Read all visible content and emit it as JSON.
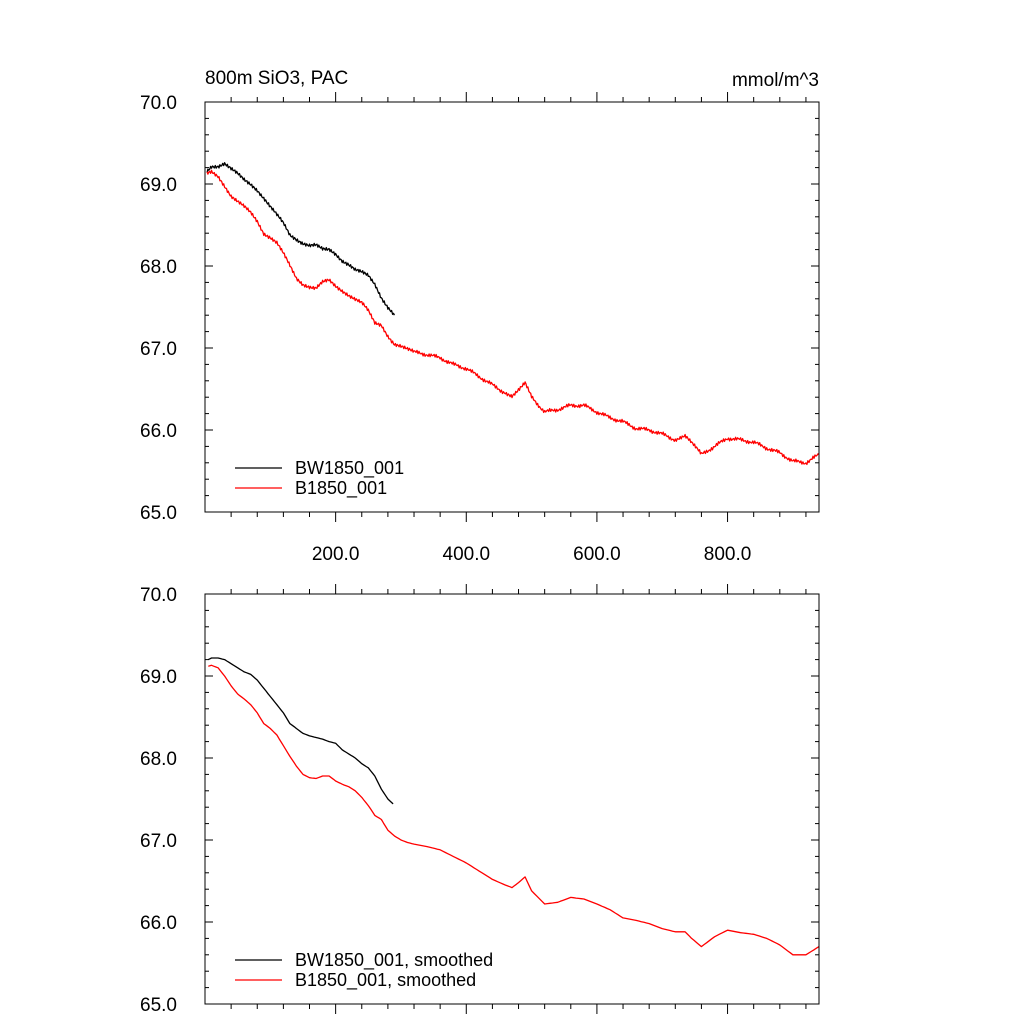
{
  "chart_data": [
    {
      "type": "line",
      "title": "800m SiO3, PAC",
      "units": "mmol/m^3",
      "xlabel": "",
      "ylabel": "",
      "xlim": [
        0,
        940
      ],
      "ylim": [
        65.0,
        70.0
      ],
      "x_ticks": [
        200,
        400,
        600,
        800
      ],
      "x_tick_labels": [
        "200.0",
        "400.0",
        "600.0",
        "800.0"
      ],
      "y_ticks": [
        65,
        66,
        67,
        68,
        69,
        70
      ],
      "y_tick_labels": [
        "65.0",
        "66.0",
        "67.0",
        "68.0",
        "69.0",
        "70.0"
      ],
      "grid": false,
      "legend": "bottom-left",
      "series": [
        {
          "name": "BW1850_001",
          "color": "#000000",
          "x": [
            3,
            10,
            20,
            30,
            40,
            50,
            60,
            70,
            80,
            90,
            100,
            110,
            120,
            130,
            140,
            150,
            160,
            170,
            180,
            190,
            200,
            210,
            220,
            230,
            240,
            250,
            260,
            270,
            280,
            290
          ],
          "y": [
            69.15,
            69.22,
            69.22,
            69.25,
            69.18,
            69.12,
            69.05,
            69.0,
            68.93,
            68.83,
            68.72,
            68.62,
            68.52,
            68.38,
            68.33,
            68.28,
            68.25,
            68.25,
            68.2,
            68.2,
            68.15,
            68.07,
            68.02,
            67.95,
            67.92,
            67.88,
            67.78,
            67.62,
            67.5,
            67.4
          ]
        },
        {
          "name": "B1850_001",
          "color": "#ff0000",
          "x": [
            3,
            10,
            20,
            30,
            40,
            50,
            60,
            70,
            80,
            90,
            100,
            110,
            120,
            130,
            140,
            150,
            160,
            170,
            180,
            190,
            200,
            210,
            220,
            230,
            240,
            250,
            260,
            270,
            280,
            290,
            300,
            310,
            320,
            340,
            360,
            380,
            400,
            420,
            440,
            460,
            470,
            480,
            490,
            500,
            520,
            540,
            560,
            580,
            600,
            620,
            640,
            660,
            680,
            700,
            720,
            735,
            745,
            760,
            780,
            800,
            820,
            840,
            860,
            880,
            900,
            920,
            940
          ],
          "y": [
            69.12,
            69.15,
            69.1,
            68.98,
            68.85,
            68.78,
            68.72,
            68.65,
            68.55,
            68.4,
            68.35,
            68.28,
            68.15,
            68.0,
            67.85,
            67.78,
            67.75,
            67.73,
            67.8,
            67.82,
            67.75,
            67.7,
            67.65,
            67.6,
            67.55,
            67.45,
            67.3,
            67.28,
            67.15,
            67.05,
            67.02,
            66.98,
            66.95,
            66.92,
            66.88,
            66.8,
            66.75,
            66.65,
            66.55,
            66.45,
            66.42,
            66.5,
            66.58,
            66.4,
            66.22,
            66.25,
            66.3,
            66.3,
            66.22,
            66.15,
            66.1,
            66.02,
            66.0,
            65.95,
            65.88,
            65.92,
            65.85,
            65.7,
            65.8,
            65.9,
            65.88,
            65.85,
            65.78,
            65.72,
            65.62,
            65.6,
            65.7
          ]
        }
      ]
    },
    {
      "type": "line",
      "title": "",
      "xlabel": "",
      "ylabel": "",
      "xlim": [
        0,
        940
      ],
      "ylim": [
        65.0,
        70.0
      ],
      "x_ticks": [
        200,
        400,
        600,
        800
      ],
      "y_ticks": [
        65,
        66,
        67,
        68,
        69,
        70
      ],
      "y_tick_labels": [
        "65.0",
        "66.0",
        "67.0",
        "68.0",
        "69.0",
        "70.0"
      ],
      "grid": false,
      "legend": "bottom-left",
      "series": [
        {
          "name": "BW1850_001, smoothed",
          "color": "#000000",
          "x": [
            5,
            10,
            20,
            30,
            40,
            50,
            60,
            70,
            80,
            90,
            100,
            110,
            120,
            130,
            140,
            150,
            160,
            170,
            180,
            190,
            200,
            210,
            220,
            230,
            240,
            250,
            260,
            270,
            280,
            288
          ],
          "y": [
            69.2,
            69.22,
            69.22,
            69.2,
            69.15,
            69.1,
            69.05,
            69.02,
            68.95,
            68.85,
            68.75,
            68.65,
            68.55,
            68.42,
            68.36,
            68.3,
            68.27,
            68.25,
            68.23,
            68.2,
            68.18,
            68.1,
            68.05,
            68.0,
            67.93,
            67.88,
            67.78,
            67.62,
            67.5,
            67.44
          ]
        },
        {
          "name": "B1850_001, smoothed",
          "color": "#ff0000",
          "x": [
            5,
            10,
            20,
            30,
            40,
            50,
            60,
            70,
            80,
            90,
            100,
            110,
            120,
            130,
            140,
            150,
            160,
            170,
            180,
            190,
            200,
            210,
            220,
            230,
            240,
            250,
            260,
            270,
            280,
            290,
            300,
            310,
            320,
            340,
            360,
            380,
            400,
            420,
            440,
            460,
            470,
            480,
            490,
            500,
            520,
            540,
            560,
            580,
            600,
            620,
            640,
            660,
            680,
            700,
            720,
            735,
            745,
            760,
            780,
            800,
            820,
            840,
            860,
            880,
            900,
            920,
            940
          ],
          "y": [
            69.12,
            69.13,
            69.1,
            69.0,
            68.88,
            68.78,
            68.72,
            68.65,
            68.55,
            68.42,
            68.36,
            68.28,
            68.15,
            68.02,
            67.9,
            67.8,
            67.76,
            67.75,
            67.78,
            67.78,
            67.72,
            67.68,
            67.65,
            67.6,
            67.52,
            67.42,
            67.3,
            67.25,
            67.12,
            67.05,
            67.0,
            66.97,
            66.95,
            66.92,
            66.88,
            66.8,
            66.72,
            66.62,
            66.52,
            66.45,
            66.42,
            66.48,
            66.55,
            66.38,
            66.22,
            66.24,
            66.3,
            66.28,
            66.22,
            66.15,
            66.05,
            66.02,
            65.98,
            65.92,
            65.88,
            65.88,
            65.8,
            65.7,
            65.82,
            65.9,
            65.87,
            65.85,
            65.8,
            65.72,
            65.6,
            65.6,
            65.7
          ]
        }
      ]
    }
  ]
}
